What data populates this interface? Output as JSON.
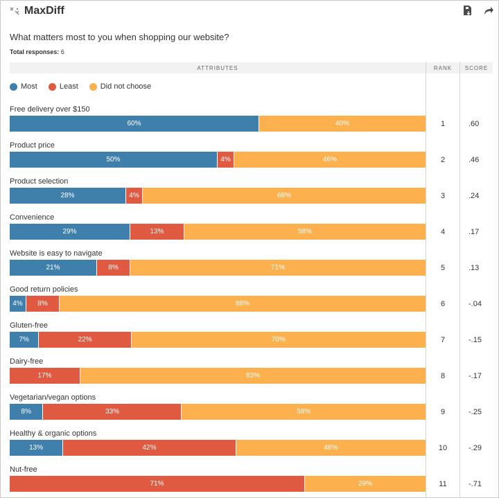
{
  "app": {
    "title": "MaxDiff",
    "icons": {
      "logo": "maxdiff-logo-icon",
      "export": "export-icon",
      "share": "share-icon"
    }
  },
  "question": "What matters most to you when shopping our website?",
  "total": {
    "label": "Total responses:",
    "value": "6"
  },
  "headers": {
    "attributes": "ATTRIBUTES",
    "rank": "RANK",
    "score": "SCORE"
  },
  "colors": {
    "most": "#3f7fab",
    "least": "#df5a41",
    "not": "#fdb04e"
  },
  "chart_data": {
    "type": "bar",
    "stacked": true,
    "orientation": "horizontal",
    "xlim": [
      0,
      100
    ],
    "legend_placement": "top-left",
    "series": [
      {
        "name": "Most",
        "values": [
          60,
          50,
          28,
          29,
          21,
          4,
          7,
          0,
          8,
          13,
          0
        ]
      },
      {
        "name": "Least",
        "values": [
          0,
          4,
          4,
          13,
          8,
          8,
          22,
          17,
          33,
          42,
          71
        ]
      },
      {
        "name": "Did not choose",
        "values": [
          40,
          46,
          68,
          58,
          71,
          88,
          70,
          83,
          58,
          46,
          29
        ]
      }
    ],
    "categories": [
      "Free delivery over $150",
      "Product price",
      "Product selection",
      "Convenience",
      "Website is easy to navigate",
      "Good return policies",
      "Gluten-free",
      "Dairy-free",
      "Vegetarian/vegan options",
      "Healthy & organic options",
      "Nut-free"
    ],
    "ranks": [
      "1",
      "2",
      "3",
      "4",
      "5",
      "6",
      "7",
      "8",
      "9",
      "10",
      "11"
    ],
    "scores": [
      ".60",
      ".46",
      ".24",
      ".17",
      ".13",
      "-.04",
      "-.15",
      "-.17",
      "-.25",
      "-.29",
      "-.71"
    ]
  }
}
